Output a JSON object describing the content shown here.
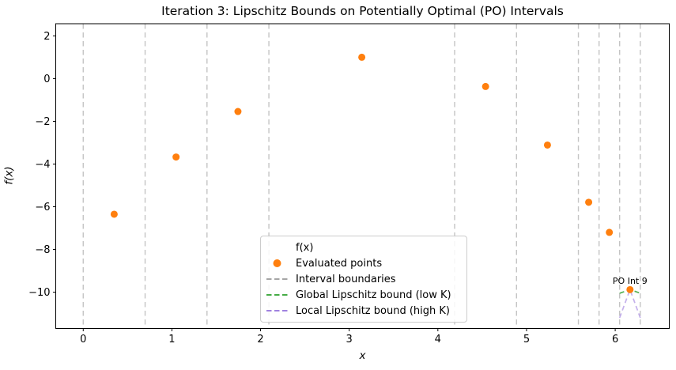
{
  "figure": {
    "title": "Iteration 3: Lipschitz Bounds on Potentially Optimal (PO) Intervals"
  },
  "chart_data": {
    "type": "scatter",
    "title": "Iteration 3: Lipschitz Bounds on Potentially Optimal (PO) Intervals",
    "xlabel": "x",
    "ylabel": "f(x)",
    "xlim": [
      -0.31,
      6.61
    ],
    "ylim": [
      -11.7,
      2.57
    ],
    "xticks": [
      0,
      1,
      2,
      3,
      4,
      5,
      6
    ],
    "yticks": [
      2,
      0,
      -2,
      -4,
      -6,
      -8,
      -10
    ],
    "grid": false,
    "series": [
      {
        "name": "Evaluated points",
        "type": "scatter",
        "color": "#ff7f0e",
        "x": [
          0.349,
          1.047,
          1.745,
          3.142,
          4.538,
          5.236,
          5.701,
          5.934,
          6.167
        ],
        "y": [
          -6.35,
          -3.67,
          -1.54,
          1.0,
          -0.37,
          -3.11,
          -5.79,
          -7.2,
          -9.88
        ]
      }
    ],
    "interval_boundaries": [
      0,
      0.698,
      1.396,
      2.094,
      4.189,
      4.887,
      5.585,
      5.818,
      6.05,
      6.283
    ],
    "po_interval": {
      "annotation": "PO Int 9",
      "x_left": 6.05,
      "x_right": 6.283,
      "center_x": 6.167,
      "center_y": -9.88,
      "global_bound": {
        "edge_y": -10.05,
        "color": "#2ca02c"
      },
      "local_bound": {
        "edge_y": -11.2,
        "color": "#9370db"
      }
    },
    "legend": {
      "title": "f(x)",
      "position": "lower center",
      "entries": [
        {
          "label": "Evaluated points",
          "marker": "dot",
          "color": "#ff7f0e"
        },
        {
          "label": "Interval boundaries",
          "marker": "dashed-line",
          "color": "#9a9a9a"
        },
        {
          "label": "Global Lipschitz bound (low K)",
          "marker": "dashed-line",
          "color": "#2ca02c"
        },
        {
          "label": "Local Lipschitz bound (high K)",
          "marker": "dashed-line",
          "color": "#9370db"
        }
      ]
    },
    "colors": {
      "points": "#ff7f0e",
      "boundaries": "#c4c4c4",
      "global_bound": "#2ca02c",
      "local_bound": "#9370db",
      "axis": "#000000",
      "background": "#ffffff"
    }
  }
}
